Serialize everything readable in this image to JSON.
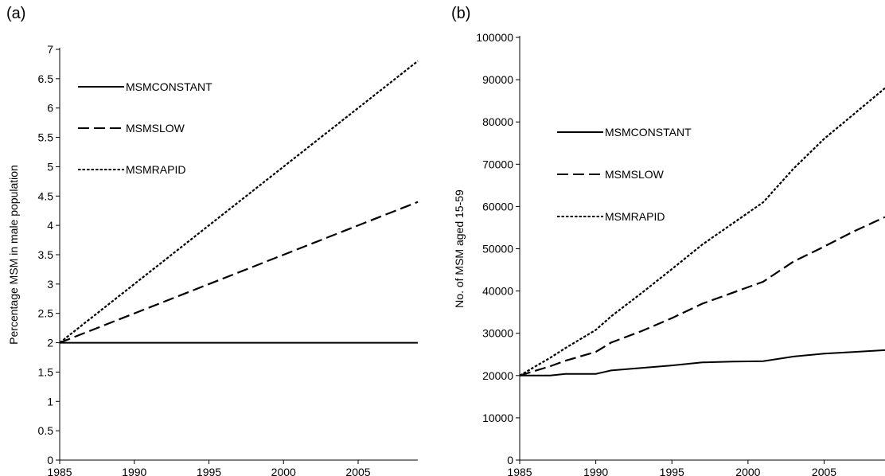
{
  "chart_data": [
    {
      "panel_label": "(a)",
      "type": "line",
      "title": "",
      "xlabel": "",
      "ylabel": "Percentage MSM in male population",
      "xlim": [
        1985,
        2009
      ],
      "ylim": [
        0,
        7
      ],
      "x_ticks": [
        "1985",
        "1990",
        "1995",
        "2000",
        "2005"
      ],
      "y_ticks": [
        "0",
        "0.5",
        "1",
        "1.5",
        "2",
        "2.5",
        "3",
        "3.5",
        "4",
        "4.5",
        "5",
        "5.5",
        "6",
        "6.5",
        "7"
      ],
      "grid": false,
      "legend_position": "top-left",
      "series": [
        {
          "name": "MSMCONSTANT",
          "style": "solid",
          "x": [
            1985,
            2009
          ],
          "y": [
            2.0,
            2.0
          ]
        },
        {
          "name": "MSMSLOW",
          "style": "dashed",
          "x": [
            1985,
            2009
          ],
          "y": [
            2.0,
            4.4
          ]
        },
        {
          "name": "MSMRAPID",
          "style": "dotted",
          "x": [
            1985,
            2009
          ],
          "y": [
            2.0,
            6.8
          ]
        }
      ]
    },
    {
      "panel_label": "(b)",
      "type": "line",
      "title": "",
      "xlabel": "",
      "ylabel": "No. of MSM aged 15-59",
      "xlim": [
        1985,
        2009
      ],
      "ylim": [
        0,
        100000
      ],
      "x_ticks": [
        "1985",
        "1990",
        "1995",
        "2000",
        "2005"
      ],
      "y_ticks": [
        "0",
        "10000",
        "20000",
        "30000",
        "40000",
        "50000",
        "60000",
        "70000",
        "80000",
        "90000",
        "100000"
      ],
      "grid": false,
      "legend_position": "top-left",
      "series": [
        {
          "name": "MSMCONSTANT",
          "style": "solid",
          "x": [
            1985,
            1987,
            1988,
            1990,
            1991,
            1993,
            1995,
            1997,
            1999,
            2001,
            2003,
            2005,
            2007,
            2009
          ],
          "y": [
            20000,
            20000,
            20400,
            20400,
            21200,
            21800,
            22400,
            23100,
            23300,
            23400,
            24500,
            25200,
            25600,
            26000
          ]
        },
        {
          "name": "MSMSLOW",
          "style": "dashed",
          "x": [
            1985,
            1987,
            1988,
            1990,
            1991,
            1993,
            1995,
            1997,
            1999,
            2001,
            2003,
            2005,
            2007,
            2009
          ],
          "y": [
            20000,
            22200,
            23500,
            25600,
            27800,
            30500,
            33600,
            37000,
            39600,
            42200,
            47000,
            50500,
            54200,
            57500
          ]
        },
        {
          "name": "MSMRAPID",
          "style": "dotted",
          "x": [
            1985,
            1987,
            1988,
            1990,
            1991,
            1993,
            1995,
            1997,
            1999,
            2001,
            2003,
            2005,
            2007,
            2009
          ],
          "y": [
            20000,
            24200,
            26500,
            30800,
            34000,
            39500,
            45200,
            51000,
            56000,
            61000,
            69000,
            76000,
            82000,
            88000
          ]
        }
      ]
    }
  ]
}
